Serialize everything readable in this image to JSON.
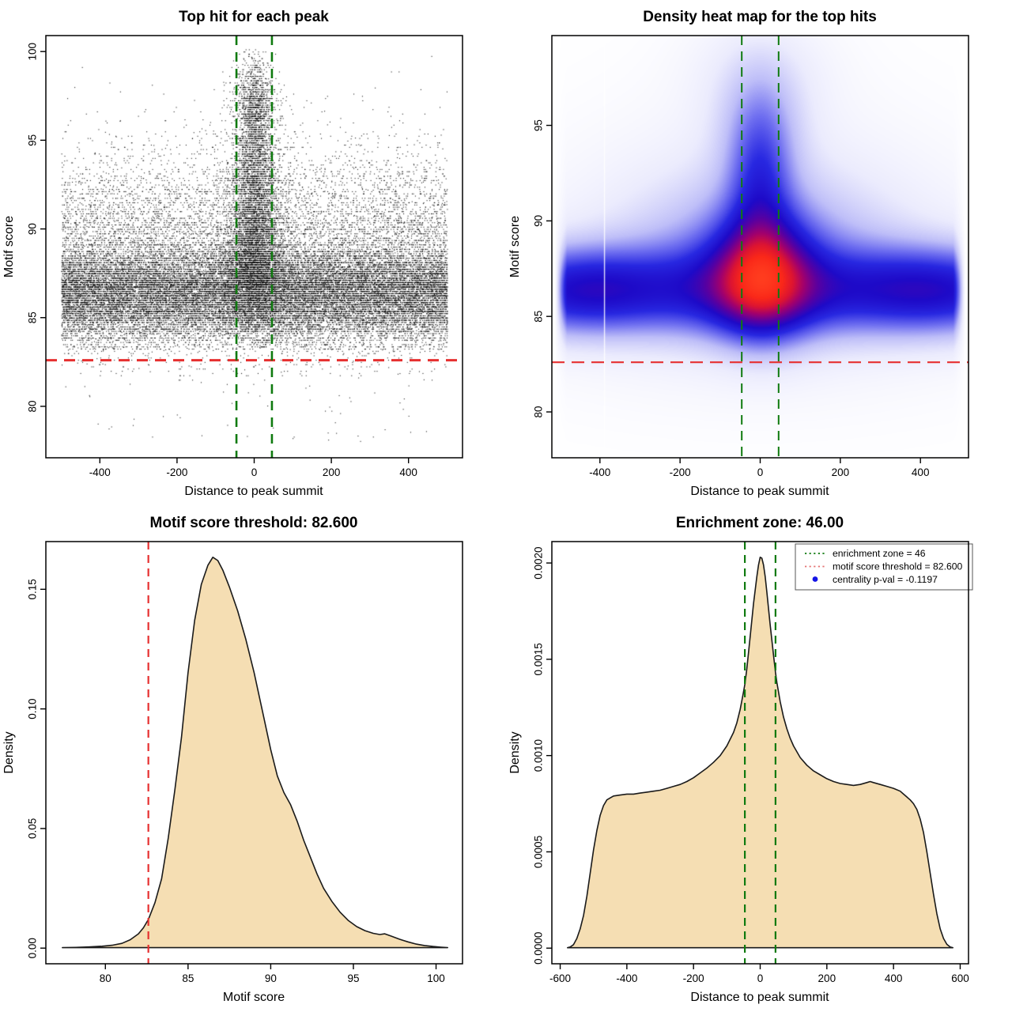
{
  "figure": {
    "background": "#ffffff",
    "description": "Four-panel motif centrality / enrichment diagnostic figure"
  },
  "colors": {
    "threshold_red": "#e63030",
    "enrichment_green": "#0f7a0f",
    "density_fill_wheat": "#f5deb3",
    "curve_outline": "#1a1a1a",
    "legend_red": "#e57373",
    "legend_blue": "#1414e6",
    "scatter_black": "#000000"
  },
  "chart_data": [
    {
      "type": "scatter",
      "title": "Top hit for each peak",
      "xlabel": "Distance to peak summit",
      "ylabel": "Motif score",
      "xlim": [
        -540,
        540
      ],
      "ylim": [
        77.1,
        100.9
      ],
      "xticks": [
        -400,
        -200,
        0,
        200,
        400
      ],
      "xtick_labels": [
        "-400",
        "-200",
        "0",
        "200",
        "400"
      ],
      "yticks": [
        80,
        85,
        90,
        95,
        100
      ],
      "ytick_labels": [
        "80",
        "85",
        "90",
        "95",
        "100"
      ],
      "grid": false,
      "data_x_range": [
        -500,
        500
      ],
      "point_color": "#000000",
      "ref_lines": [
        {
          "name": "motif-score-threshold",
          "orientation": "horizontal",
          "values": [
            82.6
          ],
          "color": "#e63030",
          "width": 3,
          "dash": "14,9"
        },
        {
          "name": "enrichment-zone",
          "orientation": "vertical",
          "values": [
            -46,
            46
          ],
          "color": "#0f7a0f",
          "width": 2.6,
          "dash": "12,9"
        }
      ],
      "scatter_model": {
        "seed": 42,
        "n_background": 42000,
        "n_central_enrichment": 9500,
        "n_low_outliers": 50,
        "score_quantize_step": 0.125,
        "background_score_mixture": [
          {
            "mean": 86.3,
            "sd": 1.15,
            "w": 0.42
          },
          {
            "mean": 87.3,
            "sd": 1.7,
            "w": 0.22
          },
          {
            "mean": 88.5,
            "sd": 2.4,
            "w": 0.14
          },
          {
            "mean": 85.2,
            "sd": 0.9,
            "w": 0.09
          },
          {
            "mean": 90.0,
            "sd": 2.9,
            "w": 0.06,
            "half_up": true
          },
          {
            "mean": 86.5,
            "sd": 1.0,
            "w": 0.045
          },
          {
            "mean": 84.0,
            "sd": 1.4,
            "w": 0.025,
            "half_down": true
          }
        ],
        "central_score_mixture": [
          {
            "mean": 87.3,
            "sd": 1.5,
            "w": 0.28
          },
          {
            "mean": 89.5,
            "sd": 1.9,
            "w": 0.24
          },
          {
            "mean": 92.0,
            "sd": 2.1,
            "w": 0.2
          },
          {
            "mean": 94.8,
            "sd": 1.9,
            "w": 0.16
          },
          {
            "mean": 97.2,
            "sd": 1.3,
            "w": 0.12
          }
        ]
      }
    },
    {
      "type": "heatmap",
      "title": "Density heat map for the top hits",
      "xlabel": "Distance to peak summit",
      "ylabel": "Motif score",
      "xlim": [
        -520,
        520
      ],
      "ylim": [
        77.6,
        99.7
      ],
      "xticks": [
        -400,
        -200,
        0,
        200,
        400
      ],
      "xtick_labels": [
        "-400",
        "-200",
        "0",
        "200",
        "400"
      ],
      "yticks": [
        80,
        85,
        90,
        95
      ],
      "ytick_labels": [
        "80",
        "85",
        "90",
        "95"
      ],
      "grid": false,
      "colormap": [
        "#ffffff",
        "#ebebfd",
        "#bebef8",
        "#6e6ef0",
        "#2828e1",
        "#1e0ac8",
        "#5a00a0",
        "#a0006e",
        "#dc1432",
        "#fa2819",
        "#ff3c1e"
      ],
      "hot_spot": {
        "x": 5,
        "motif_score": 87.1
      },
      "white_gap_line_x": -390,
      "density_components": [
        {
          "kind": "hband",
          "amp": 0.58,
          "y0": 86.35,
          "sy": 1.5,
          "edge_amp": 0.27,
          "edge_centers": [
            -430,
            420
          ],
          "edge_sx": [
            110,
            120
          ]
        },
        {
          "kind": "blob",
          "amp": 1.1,
          "x0": 5,
          "sx": 80,
          "y0": 87.1,
          "sy": 2.0
        },
        {
          "kind": "blob",
          "amp": 0.4,
          "x0": 0,
          "sx": 50,
          "y0": 91.5,
          "sy": 3.0
        },
        {
          "kind": "blob",
          "amp": 0.2,
          "x0": 0,
          "sx": 75,
          "y0": 94.2,
          "sy": 2.4
        },
        {
          "kind": "blob",
          "amp": 0.1,
          "x0": 0,
          "sx": 100,
          "y0": 96.8,
          "sy": 2.2
        },
        {
          "kind": "blob",
          "amp": 0.05,
          "x0": 0,
          "sx": 140,
          "y0": 98.5,
          "sy": 2.0
        },
        {
          "kind": "blob",
          "amp": 0.28,
          "x0": 0,
          "sx": 210,
          "y0": 88.4,
          "sy": 2.8
        },
        {
          "kind": "blob",
          "amp": 0.15,
          "x0": 0,
          "sx": 430,
          "y0": 86.8,
          "sy": 3.6
        },
        {
          "kind": "blob",
          "amp": 0.06,
          "x0": 0,
          "sx": 300,
          "y0": 92.5,
          "sy": 3.5
        }
      ],
      "ref_lines": [
        {
          "name": "motif-score-threshold",
          "orientation": "horizontal",
          "values": [
            82.6
          ],
          "color": "#e63030",
          "width": 2.2,
          "dash": "16,9"
        },
        {
          "name": "enrichment-zone",
          "orientation": "vertical",
          "values": [
            -46,
            46
          ],
          "color": "#0f7a0f",
          "width": 2,
          "dash": "12,8"
        }
      ]
    },
    {
      "type": "area",
      "title": "Motif score threshold: 82.600",
      "xlabel": "Motif score",
      "ylabel": "Density",
      "xlim": [
        76.4,
        101.6
      ],
      "ylim": [
        -0.00654,
        0.16994
      ],
      "xticks": [
        80,
        85,
        90,
        95,
        100
      ],
      "xtick_labels": [
        "80",
        "85",
        "90",
        "95",
        "100"
      ],
      "yticks": [
        0,
        0.05,
        0.1,
        0.15
      ],
      "ytick_labels": [
        "0.00",
        "0.05",
        "0.10",
        "0.15"
      ],
      "grid": false,
      "fill_color": "#f5deb3",
      "line_color": "#1a1a1a",
      "peak": {
        "x": 86.5,
        "density": 0.1634
      },
      "ref_lines": [
        {
          "name": "motif-score-threshold",
          "orientation": "vertical",
          "values": [
            82.6
          ],
          "color": "#e63030",
          "width": 2.2,
          "dash": "10,7"
        }
      ],
      "curve": [
        [
          77.4,
          0.0002
        ],
        [
          78.2,
          0.0003
        ],
        [
          79,
          0.0005
        ],
        [
          79.8,
          0.0008
        ],
        [
          80.4,
          0.0012
        ],
        [
          81,
          0.002
        ],
        [
          81.5,
          0.0035
        ],
        [
          82,
          0.006
        ],
        [
          82.3,
          0.0085
        ],
        [
          82.6,
          0.012
        ],
        [
          83,
          0.019
        ],
        [
          83.4,
          0.029
        ],
        [
          83.8,
          0.046
        ],
        [
          84.2,
          0.066
        ],
        [
          84.6,
          0.088
        ],
        [
          85,
          0.115
        ],
        [
          85.4,
          0.137
        ],
        [
          85.8,
          0.152
        ],
        [
          86.2,
          0.16
        ],
        [
          86.5,
          0.1634
        ],
        [
          86.8,
          0.162
        ],
        [
          87.1,
          0.158
        ],
        [
          87.5,
          0.151
        ],
        [
          88,
          0.141
        ],
        [
          88.5,
          0.129
        ],
        [
          89,
          0.115
        ],
        [
          89.5,
          0.099
        ],
        [
          90,
          0.083
        ],
        [
          90.4,
          0.072
        ],
        [
          90.8,
          0.065
        ],
        [
          91.2,
          0.06
        ],
        [
          91.6,
          0.053
        ],
        [
          92,
          0.045
        ],
        [
          92.4,
          0.038
        ],
        [
          92.8,
          0.031
        ],
        [
          93.2,
          0.025
        ],
        [
          93.7,
          0.0195
        ],
        [
          94.2,
          0.015
        ],
        [
          94.7,
          0.0115
        ],
        [
          95.2,
          0.009
        ],
        [
          95.7,
          0.0073
        ],
        [
          96.2,
          0.0062
        ],
        [
          96.6,
          0.0057
        ],
        [
          96.9,
          0.006
        ],
        [
          97.3,
          0.005
        ],
        [
          97.8,
          0.0037
        ],
        [
          98.3,
          0.0026
        ],
        [
          98.8,
          0.0017
        ],
        [
          99.3,
          0.0011
        ],
        [
          99.8,
          0.0007
        ],
        [
          100.3,
          0.0004
        ],
        [
          100.7,
          0.0002
        ]
      ]
    },
    {
      "type": "area",
      "title": "Enrichment zone: 46.00",
      "xlabel": "Distance to peak summit",
      "ylabel": "Density",
      "xlim": [
        -625,
        625
      ],
      "ylim": [
        -8.12e-05,
        0.0021112
      ],
      "xticks": [
        -600,
        -400,
        -200,
        0,
        200,
        400,
        600
      ],
      "xtick_labels": [
        "-600",
        "-400",
        "-200",
        "0",
        "200",
        "400",
        "600"
      ],
      "yticks": [
        0,
        0.0005,
        0.001,
        0.0015,
        0.002
      ],
      "ytick_labels": [
        "0.0000",
        "0.0005",
        "0.0010",
        "0.0015",
        "0.0020"
      ],
      "grid": false,
      "fill_color": "#f5deb3",
      "line_color": "#1a1a1a",
      "peak": {
        "x": 0,
        "density": 0.00203
      },
      "ref_lines": [
        {
          "name": "enrichment-zone",
          "orientation": "vertical",
          "values": [
            -46,
            46
          ],
          "color": "#0f7a0f",
          "width": 2.2,
          "dash": "10,7"
        }
      ],
      "legend": {
        "position": "top-right",
        "entries": [
          {
            "label": "enrichment zone = 46",
            "key": "dotted-line",
            "color": "#0f7a0f"
          },
          {
            "label": "motif score threshold = 82.600",
            "key": "dotted-line",
            "color": "#e57373"
          },
          {
            "label": "centrality p-val = -0.1197",
            "key": "point",
            "color": "#1414e6"
          }
        ]
      },
      "curve": [
        [
          -578,
          2e-06
        ],
        [
          -570,
          6e-06
        ],
        [
          -560,
          1.8e-05
        ],
        [
          -550,
          5e-05
        ],
        [
          -540,
          0.0001
        ],
        [
          -530,
          0.00017
        ],
        [
          -520,
          0.00027
        ],
        [
          -510,
          0.00039
        ],
        [
          -500,
          0.00051
        ],
        [
          -490,
          0.00061
        ],
        [
          -480,
          0.00069
        ],
        [
          -470,
          0.00074
        ],
        [
          -460,
          0.00077
        ],
        [
          -450,
          0.00078
        ],
        [
          -440,
          0.00079
        ],
        [
          -420,
          0.000795
        ],
        [
          -400,
          0.0008
        ],
        [
          -380,
          0.0008
        ],
        [
          -360,
          0.000805
        ],
        [
          -340,
          0.00081
        ],
        [
          -320,
          0.000815
        ],
        [
          -300,
          0.00082
        ],
        [
          -280,
          0.00083
        ],
        [
          -260,
          0.00084
        ],
        [
          -240,
          0.00085
        ],
        [
          -220,
          0.000865
        ],
        [
          -200,
          0.000885
        ],
        [
          -180,
          0.00091
        ],
        [
          -160,
          0.000935
        ],
        [
          -140,
          0.000965
        ],
        [
          -120,
          0.001
        ],
        [
          -100,
          0.00105
        ],
        [
          -80,
          0.00112
        ],
        [
          -70,
          0.00117
        ],
        [
          -60,
          0.00124
        ],
        [
          -50,
          0.00133
        ],
        [
          -46,
          0.00137
        ],
        [
          -40,
          0.00145
        ],
        [
          -30,
          0.00162
        ],
        [
          -20,
          0.00179
        ],
        [
          -10,
          0.00193
        ],
        [
          -5,
          0.00199
        ],
        [
          0,
          0.00203
        ],
        [
          5,
          0.002025
        ],
        [
          10,
          0.00199
        ],
        [
          15,
          0.00193
        ],
        [
          20,
          0.00185
        ],
        [
          30,
          0.00168
        ],
        [
          40,
          0.00152
        ],
        [
          46,
          0.00143
        ],
        [
          50,
          0.00138
        ],
        [
          60,
          0.00128
        ],
        [
          70,
          0.0012
        ],
        [
          80,
          0.00114
        ],
        [
          90,
          0.00109
        ],
        [
          100,
          0.00105
        ],
        [
          120,
          0.00099
        ],
        [
          140,
          0.00095
        ],
        [
          160,
          0.00092
        ],
        [
          180,
          0.0009
        ],
        [
          200,
          0.00088
        ],
        [
          220,
          0.000865
        ],
        [
          240,
          0.000855
        ],
        [
          260,
          0.00085
        ],
        [
          280,
          0.000845
        ],
        [
          300,
          0.00085
        ],
        [
          320,
          0.00086
        ],
        [
          330,
          0.000865
        ],
        [
          340,
          0.00086
        ],
        [
          360,
          0.00085
        ],
        [
          380,
          0.00084
        ],
        [
          400,
          0.00083
        ],
        [
          420,
          0.000815
        ],
        [
          430,
          0.0008
        ],
        [
          440,
          0.000785
        ],
        [
          450,
          0.00077
        ],
        [
          460,
          0.00075
        ],
        [
          470,
          0.00072
        ],
        [
          480,
          0.00067
        ],
        [
          490,
          0.0006
        ],
        [
          500,
          0.0005
        ],
        [
          510,
          0.00039
        ],
        [
          520,
          0.00028
        ],
        [
          530,
          0.00018
        ],
        [
          540,
          0.0001
        ],
        [
          550,
          5e-05
        ],
        [
          560,
          2e-05
        ],
        [
          570,
          6e-06
        ],
        [
          578,
          2e-06
        ]
      ]
    }
  ]
}
